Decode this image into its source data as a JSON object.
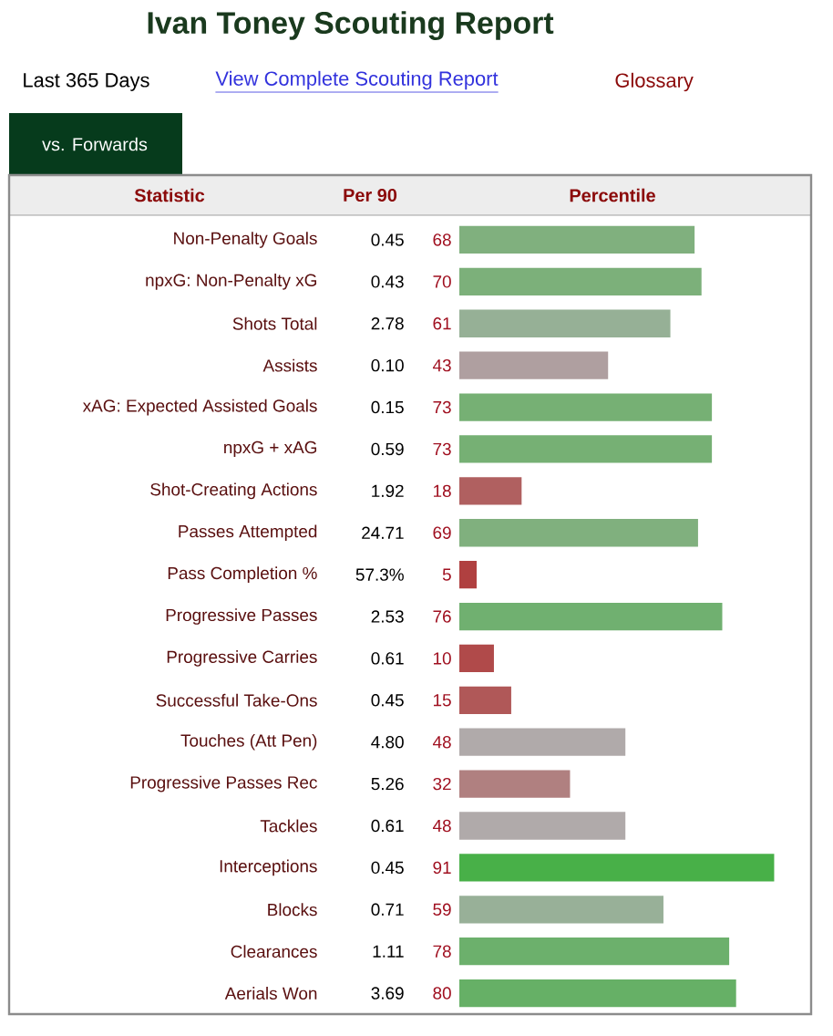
{
  "chart_data": {
    "type": "bar",
    "orientation": "horizontal",
    "title": "Ivan Toney Scouting Report",
    "subtitle": "Last 365 Days",
    "categories": [
      "Non-Penalty Goals",
      "npxG: Non-Penalty xG",
      "Shots Total",
      "Assists",
      "xAG: Expected Assisted Goals",
      "npxG + xAG",
      "Shot-Creating Actions",
      "Passes Attempted",
      "Pass Completion %",
      "Progressive Passes",
      "Progressive Carries",
      "Successful Take-Ons",
      "Touches (Att Pen)",
      "Progressive Passes Rec",
      "Tackles",
      "Interceptions",
      "Blocks",
      "Clearances",
      "Aerials Won"
    ],
    "values": [
      68,
      70,
      61,
      43,
      73,
      73,
      18,
      69,
      5,
      76,
      10,
      15,
      48,
      32,
      48,
      91,
      59,
      78,
      80
    ],
    "colors": [
      "#80b07e",
      "#7cb07a",
      "#96b096",
      "#af9fa0",
      "#76b074",
      "#76b074",
      "#b06060",
      "#80b07e",
      "#b04040",
      "#70b070",
      "#b04a4a",
      "#b05858",
      "#b0aaaa",
      "#b08080",
      "#b0aaaa",
      "#48b048",
      "#98b098",
      "#6cb06c",
      "#66b066"
    ],
    "data_labels": true,
    "annotations": [
      "View Complete Scouting Report",
      "Glossary",
      "vs. Forwards",
      "Statistic",
      "Per 90",
      "Percentile",
      "0.45",
      "0.43",
      "2.78",
      "0.10",
      "0.15",
      "0.59",
      "1.92",
      "24.71",
      "57.3%",
      "2.53",
      "0.61",
      "0.45",
      "4.80",
      "5.26",
      "0.61",
      "0.45",
      "0.71",
      "1.11",
      "3.69"
    ]
  }
}
